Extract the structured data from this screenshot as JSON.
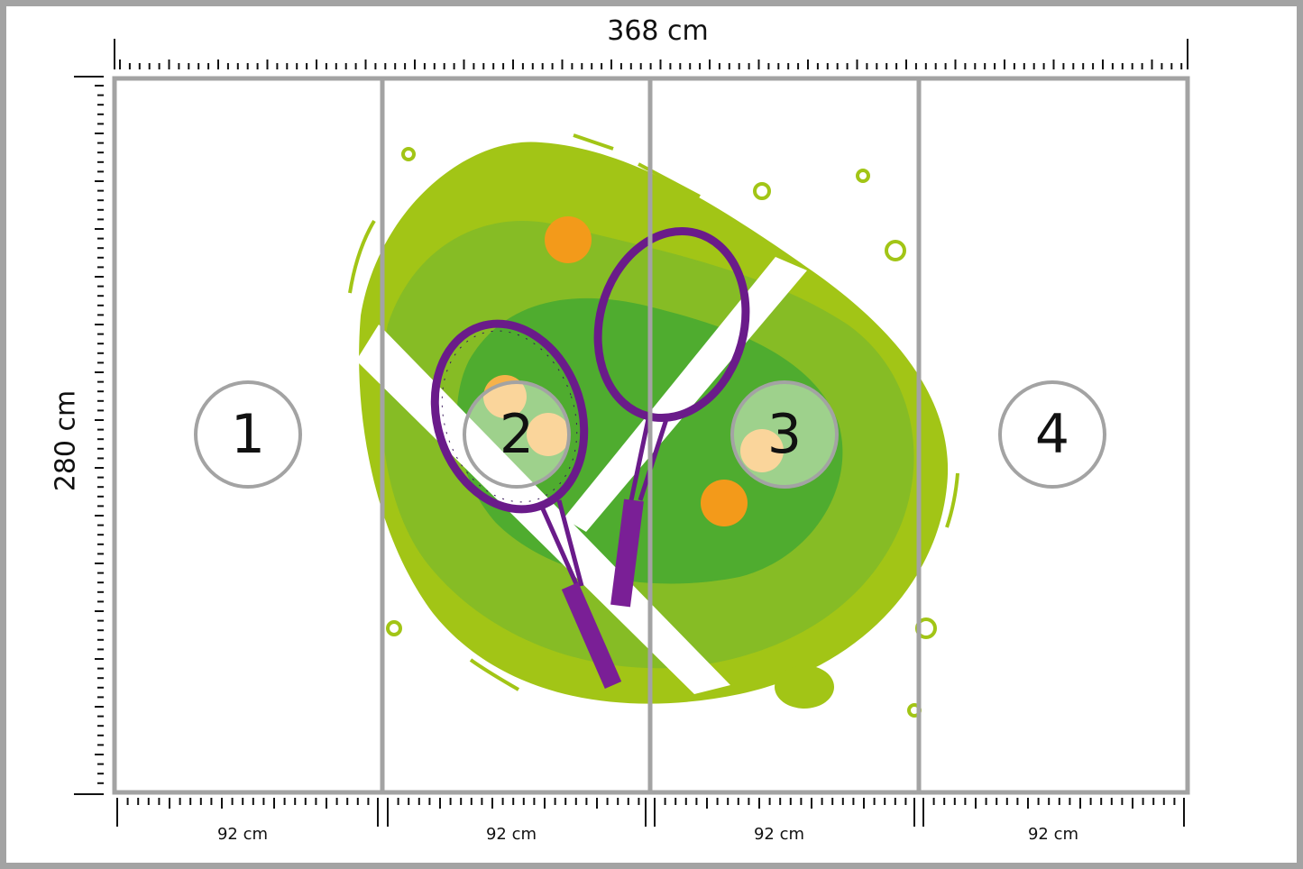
{
  "dimensions": {
    "width_label": "368 cm",
    "height_label": "280 cm"
  },
  "panels": [
    {
      "number": "1",
      "width_label": "92 cm"
    },
    {
      "number": "2",
      "width_label": "92 cm"
    },
    {
      "number": "3",
      "width_label": "92 cm"
    },
    {
      "number": "4",
      "width_label": "92 cm"
    }
  ],
  "illustration": {
    "subject": "tennis-rackets-and-balls-on-court",
    "colors": {
      "light_green": "#a2c516",
      "mid_green": "#86bc25",
      "dark_green": "#4fac2f",
      "racket_purple": "#6a1b8a",
      "ball_orange": "#f39a1a"
    }
  },
  "colors": {
    "frame": "#a3a3a3",
    "ruler": "#111111"
  }
}
